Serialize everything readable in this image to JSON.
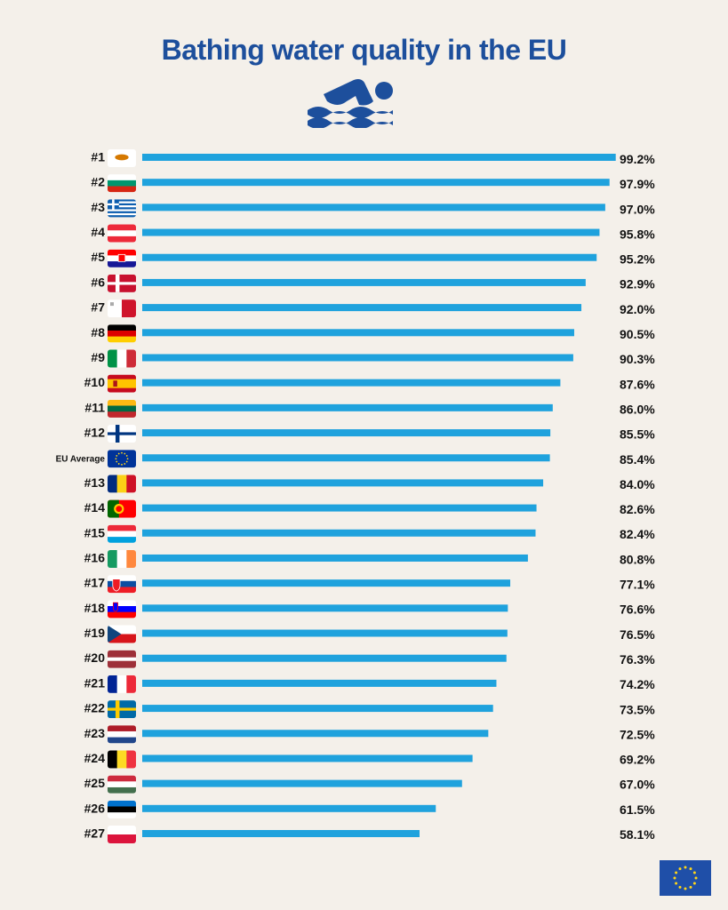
{
  "title": "Bathing water quality in the EU",
  "colors": {
    "background": "#f4f0ea",
    "title": "#1d4f9c",
    "bar": "#1fa2dd",
    "icon": "#1d4f9c",
    "text": "#111111",
    "eu_blue": "#1f4fa8",
    "eu_star": "#ffd617"
  },
  "icons": {
    "header": "swimmer-icon",
    "corner": "eu-flag-icon"
  },
  "chart_data": {
    "type": "bar",
    "orientation": "horizontal",
    "xlim": [
      0,
      100
    ],
    "categories": [
      "#1",
      "#2",
      "#3",
      "#4",
      "#5",
      "#6",
      "#7",
      "#8",
      "#9",
      "#10",
      "#11",
      "#12",
      "EU Average",
      "#13",
      "#14",
      "#15",
      "#16",
      "#17",
      "#18",
      "#19",
      "#20",
      "#21",
      "#22",
      "#23",
      "#24",
      "#25",
      "#26",
      "#27"
    ],
    "flags": [
      "flag-cyprus",
      "flag-bulgaria",
      "flag-greece",
      "flag-austria",
      "flag-croatia",
      "flag-denmark",
      "flag-malta",
      "flag-germany",
      "flag-italy",
      "flag-spain",
      "flag-lithuania",
      "flag-finland",
      "flag-eu",
      "flag-romania",
      "flag-portugal",
      "flag-luxembourg",
      "flag-ireland",
      "flag-slovakia",
      "flag-slovenia",
      "flag-czechia",
      "flag-latvia",
      "flag-france",
      "flag-sweden",
      "flag-netherlands",
      "flag-belgium",
      "flag-hungary",
      "flag-estonia",
      "flag-poland"
    ],
    "values": [
      99.2,
      97.9,
      97.0,
      95.8,
      95.2,
      92.9,
      92.0,
      90.5,
      90.3,
      87.6,
      86.0,
      85.5,
      85.4,
      84.0,
      82.6,
      82.4,
      80.8,
      77.1,
      76.6,
      76.5,
      76.3,
      74.2,
      73.5,
      72.5,
      69.2,
      67.0,
      61.5,
      58.1
    ],
    "value_labels": [
      "99.2%",
      "97.9%",
      "97.0%",
      "95.8%",
      "95.2%",
      "92.9%",
      "92.0%",
      "90.5%",
      "90.3%",
      "87.6%",
      "86.0%",
      "85.5%",
      "85.4%",
      "84.0%",
      "82.6%",
      "82.4%",
      "80.8%",
      "77.1%",
      "76.6%",
      "76.5%",
      "76.3%",
      "74.2%",
      "73.5%",
      "72.5%",
      "69.2%",
      "67.0%",
      "61.5%",
      "58.1%"
    ]
  }
}
